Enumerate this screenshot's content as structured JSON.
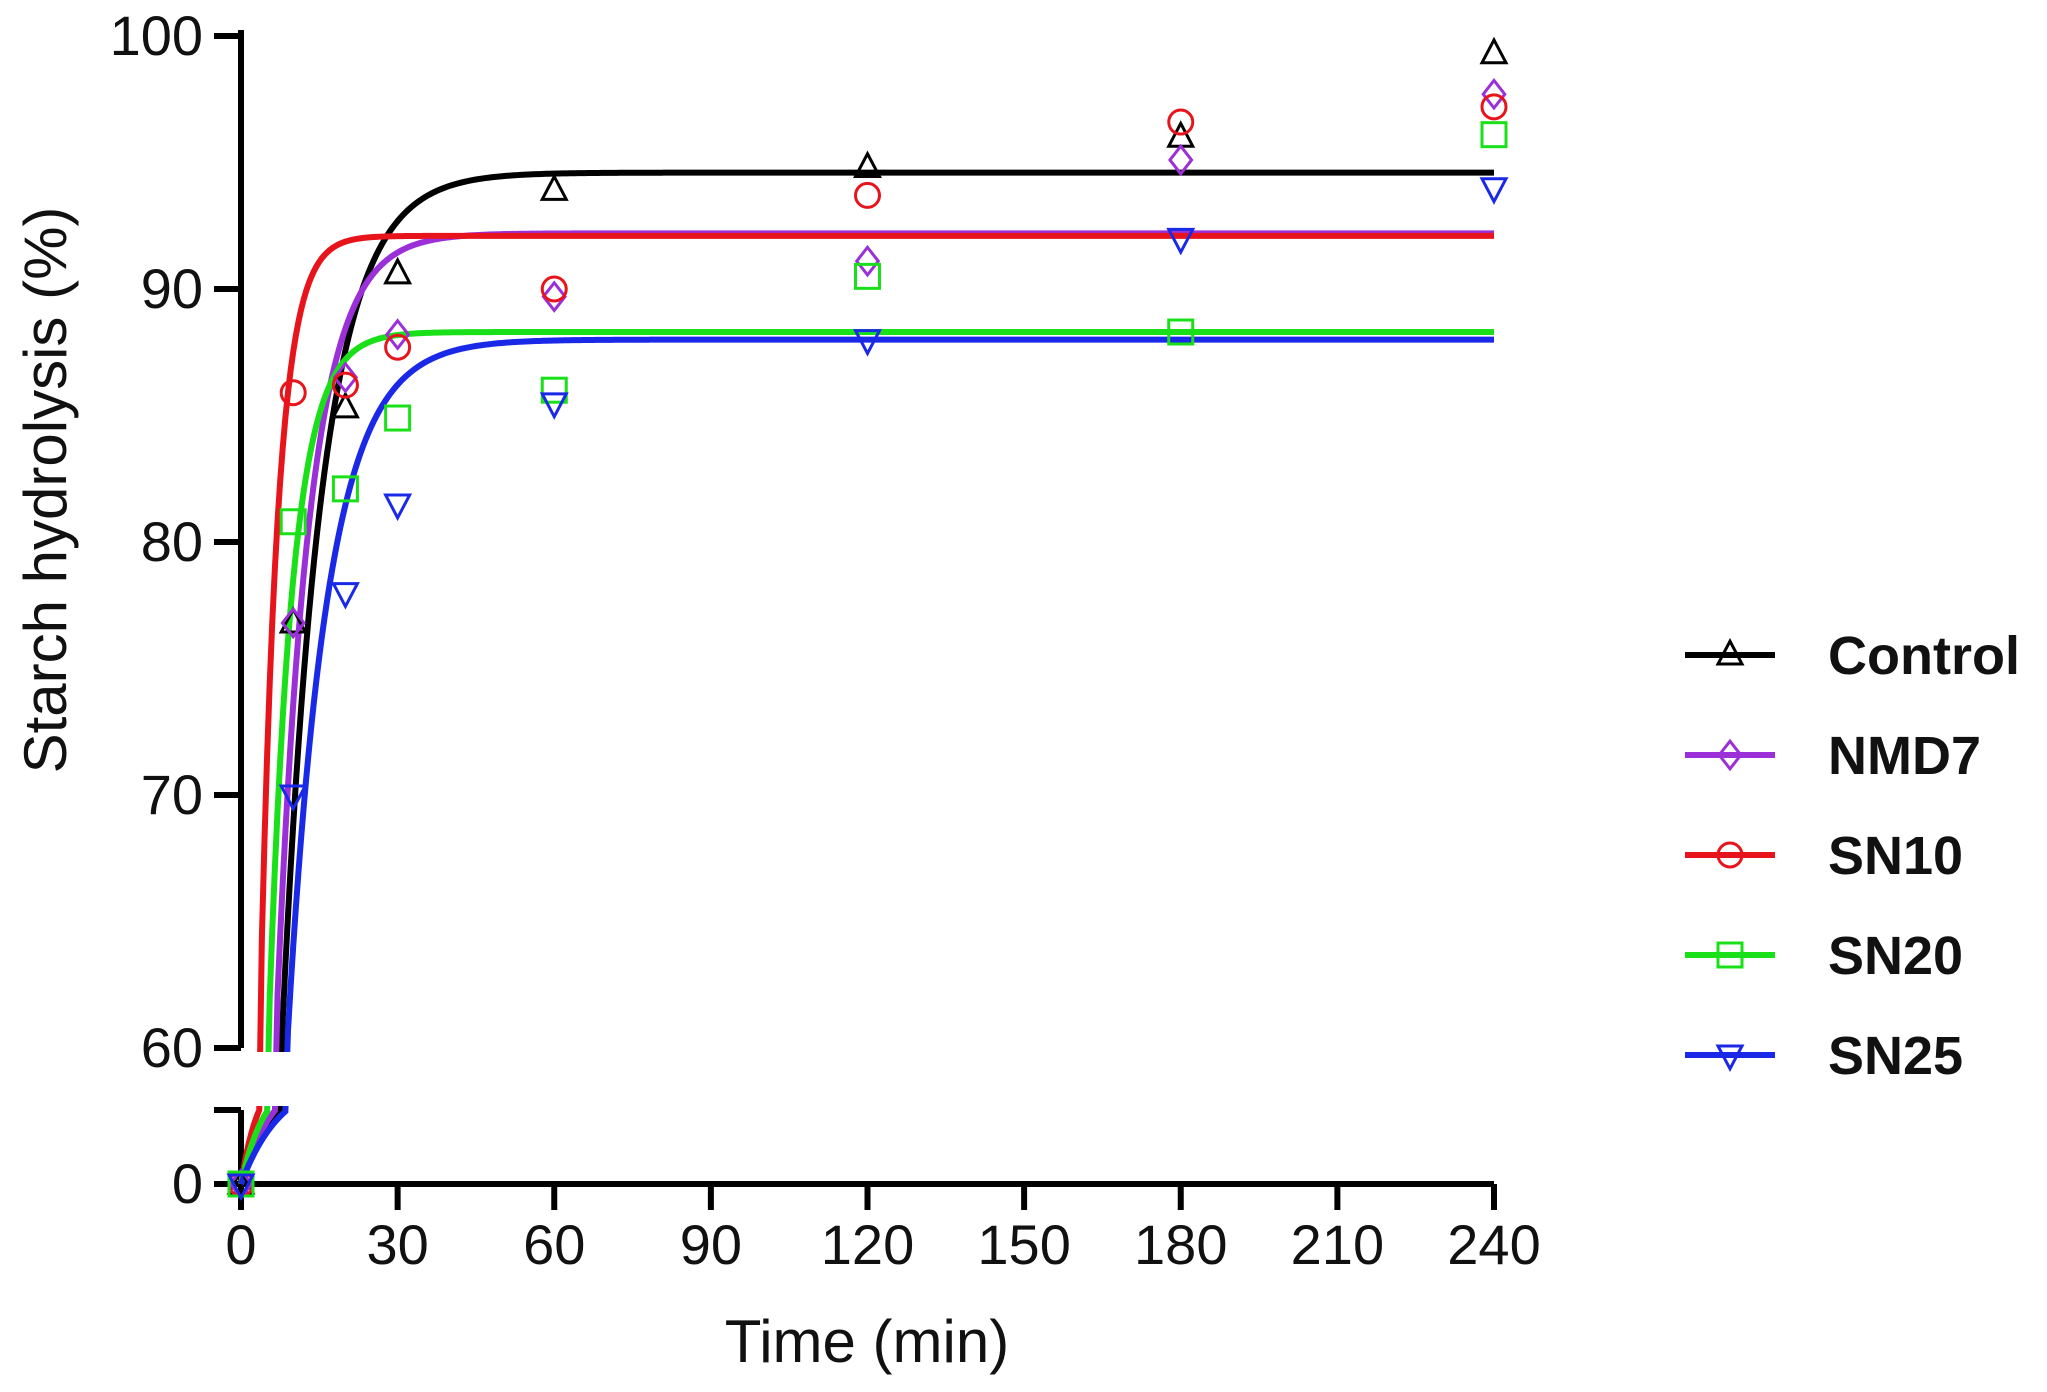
{
  "chart_data": {
    "type": "scatter",
    "title": "",
    "xlabel": "Time (min)",
    "ylabel": "Starch hydrolysis (%)",
    "xlim": [
      0,
      240
    ],
    "ylim_upper": [
      60,
      100
    ],
    "ylim_lower": [
      0,
      0
    ],
    "x_ticks": [
      "0",
      "30",
      "60",
      "90",
      "120",
      "150",
      "180",
      "210",
      "240"
    ],
    "y_ticks": [
      "60",
      "70",
      "80",
      "90",
      "100"
    ],
    "y_ticks_lower": [
      "0"
    ],
    "grid": false,
    "legend_position": "right",
    "x": [
      0,
      10,
      20,
      30,
      60,
      120,
      180,
      240
    ],
    "series": [
      {
        "name": "Control",
        "color": "#000000",
        "marker": "triangle-up",
        "values": [
          0,
          76.8,
          85.3,
          90.6,
          93.9,
          94.8,
          96.0,
          99.3
        ],
        "fit_plateau": 94.6,
        "fit_k": 0.13
      },
      {
        "name": "NMD7",
        "color": "#9b30d9",
        "marker": "diamond",
        "values": [
          0,
          76.8,
          86.5,
          88.2,
          89.7,
          91.1,
          95.1,
          97.7
        ],
        "fit_plateau": 92.2,
        "fit_k": 0.16
      },
      {
        "name": "SN10",
        "color": "#e8141b",
        "marker": "circle",
        "values": [
          0,
          85.9,
          86.2,
          87.7,
          90.0,
          93.7,
          96.6,
          97.2
        ],
        "fit_plateau": 92.1,
        "fit_k": 0.3
      },
      {
        "name": "SN20",
        "color": "#19e019",
        "marker": "square",
        "values": [
          0,
          80.8,
          82.1,
          84.9,
          86.0,
          90.5,
          88.3,
          96.1
        ],
        "fit_plateau": 88.3,
        "fit_k": 0.22
      },
      {
        "name": "SN25",
        "color": "#1a28e8",
        "marker": "triangle-down",
        "values": [
          0,
          70.0,
          78.0,
          81.5,
          85.5,
          88.0,
          92.0,
          94.0
        ],
        "fit_plateau": 88.0,
        "fit_k": 0.13
      }
    ]
  }
}
